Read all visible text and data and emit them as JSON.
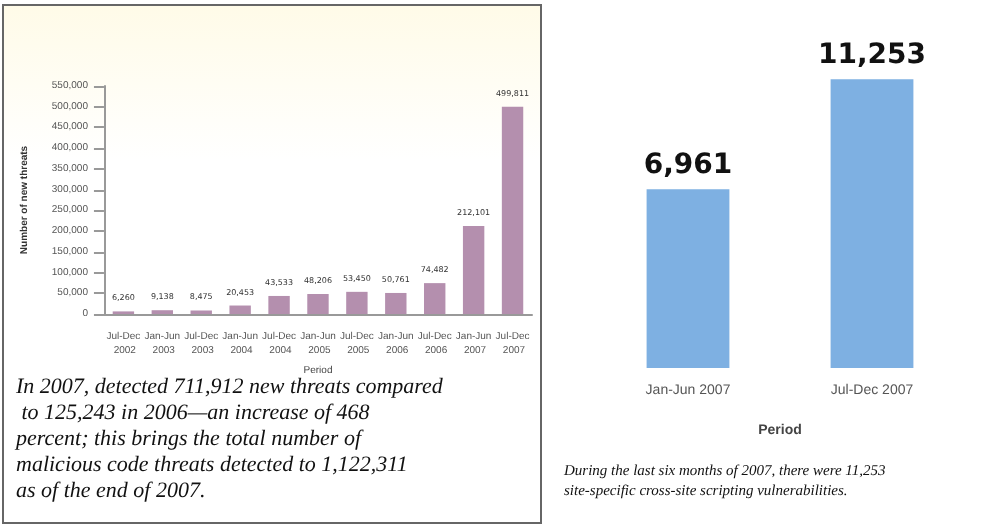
{
  "chart_data": [
    {
      "type": "bar",
      "xlabel": "Period",
      "ylabel": "Number of new threats",
      "categories": [
        "Jul-Dec 2002",
        "Jan-Jun 2003",
        "Jul-Dec 2003",
        "Jan-Jun 2004",
        "Jul-Dec 2004",
        "Jan-Jun 2005",
        "Jul-Dec 2005",
        "Jan-Jun 2006",
        "Jul-Dec 2006",
        "Jan-Jun 2007",
        "Jul-Dec 2007"
      ],
      "values": [
        6260,
        9138,
        8475,
        20453,
        43533,
        48206,
        53450,
        50761,
        74482,
        212101,
        499811
      ],
      "color": "#b48fae",
      "value_labels": [
        "6,260",
        "9,138",
        "8,475",
        "20,453",
        "43,533",
        "48,206",
        "53,450",
        "50,761",
        "74,482",
        "212,101",
        "499,811"
      ],
      "grid": false,
      "ylim": [
        0,
        550000
      ],
      "yticks": [
        0,
        {
          "value": 50000,
          "label": "50,000"
        },
        {
          "value": 100000,
          "label": "100,000"
        },
        {
          "value": 150000,
          "label": "150,000"
        },
        {
          "value": 200000,
          "label": "200,000"
        },
        {
          "value": 250000,
          "label": "250,000"
        },
        {
          "value": 300000,
          "label": "300,000"
        },
        {
          "value": 350000,
          "label": "350,000"
        },
        {
          "value": 400000,
          "label": "400,000"
        },
        {
          "value": 450000,
          "label": "450,000"
        },
        {
          "value": 500000,
          "label": "500,000"
        },
        {
          "value": 550000,
          "label": "550,000"
        }
      ],
      "annotations": [
        "In 2007, detected 711,912 new threats compared to 125,243 in 2006—an increase of 468 percent; this brings the total number of malicious code threats detected to 1,122,311 as of the end of 2007."
      ]
    },
    {
      "type": "bar",
      "xlabel": "Period",
      "categories": [
        "Jan-Jun 2007",
        "Jul-Dec 2007"
      ],
      "values": [
        6961,
        11253
      ],
      "color": "#7eb0e2",
      "value_labels": [
        "6,961",
        "11,253"
      ],
      "grid": false,
      "annotations": [
        "During the last six months of 2007, there were 11,253 site-specific cross-site scripting vulnerabilities."
      ]
    }
  ]
}
